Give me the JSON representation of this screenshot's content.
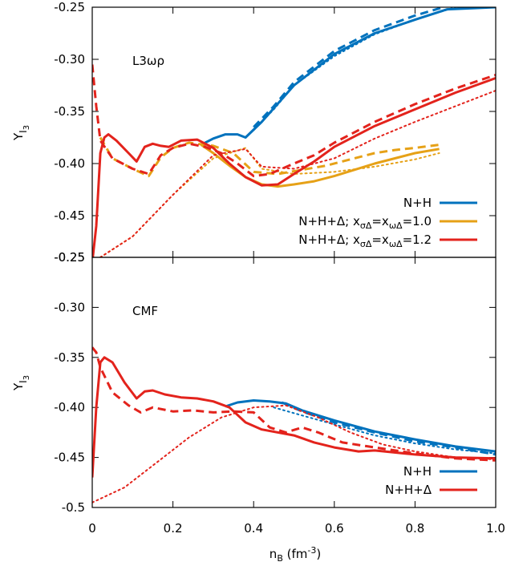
{
  "chart_data": [
    {
      "type": "line",
      "title": "L3ωρ",
      "ylabel_main": "Y",
      "ylabel_sub": "I",
      "ylabel_subsub": "3",
      "xlim": [
        0,
        1.0
      ],
      "ylim": [
        -0.45,
        -0.25
      ],
      "ylim_draw": [
        -0.495,
        -0.25
      ],
      "yticks": [
        -0.25,
        -0.3,
        -0.35,
        -0.4,
        -0.45
      ],
      "ytick_labels": [
        "-0.25",
        "-0.30",
        "-0.35",
        "-0.40",
        "-0.45"
      ],
      "legend_position": "bottom-right",
      "legend": [
        {
          "label": "N+H",
          "color": "#0072bd"
        },
        {
          "label_pre": "N+H+Δ; x",
          "sub1": "σΔ",
          "mid": "=x",
          "sub2": "ωΔ",
          "label_post": "=1.0",
          "color": "#e6a117"
        },
        {
          "label_pre": "N+H+Δ; x",
          "sub1": "σΔ",
          "mid": "=x",
          "sub2": "ωΔ",
          "label_post": "=1.2",
          "color": "#e3231c"
        }
      ],
      "series": [
        {
          "color": "#0072bd",
          "dash": "solid",
          "points": [
            [
              0.27,
              -0.382
            ],
            [
              0.3,
              -0.376
            ],
            [
              0.33,
              -0.372
            ],
            [
              0.36,
              -0.372
            ],
            [
              0.38,
              -0.375
            ],
            [
              0.42,
              -0.36
            ],
            [
              0.5,
              -0.325
            ],
            [
              0.6,
              -0.295
            ],
            [
              0.7,
              -0.275
            ],
            [
              0.8,
              -0.262
            ],
            [
              0.88,
              -0.252
            ],
            [
              1.0,
              -0.25
            ]
          ]
        },
        {
          "color": "#0072bd",
          "dash": "dashed",
          "points": [
            [
              0.4,
              -0.365
            ],
            [
              0.45,
              -0.345
            ],
            [
              0.5,
              -0.322
            ],
            [
              0.6,
              -0.292
            ],
            [
              0.7,
              -0.272
            ],
            [
              0.8,
              -0.258
            ],
            [
              0.87,
              -0.25
            ]
          ]
        },
        {
          "color": "#0072bd",
          "dash": "dotted",
          "points": [
            [
              0.4,
              -0.368
            ],
            [
              0.45,
              -0.348
            ],
            [
              0.5,
              -0.325
            ],
            [
              0.6,
              -0.297
            ],
            [
              0.7,
              -0.276
            ],
            [
              0.8,
              -0.262
            ],
            [
              0.9,
              -0.25
            ]
          ]
        },
        {
          "color": "#e6a117",
          "dash": "solid",
          "points": [
            [
              0.27,
              -0.382
            ],
            [
              0.3,
              -0.39
            ],
            [
              0.34,
              -0.402
            ],
            [
              0.38,
              -0.413
            ],
            [
              0.42,
              -0.42
            ],
            [
              0.46,
              -0.422
            ],
            [
              0.5,
              -0.42
            ],
            [
              0.55,
              -0.417
            ],
            [
              0.6,
              -0.412
            ],
            [
              0.65,
              -0.406
            ],
            [
              0.7,
              -0.4
            ],
            [
              0.75,
              -0.395
            ],
            [
              0.8,
              -0.39
            ],
            [
              0.86,
              -0.386
            ]
          ]
        },
        {
          "color": "#e6a117",
          "dash": "dashed",
          "points": [
            [
              0.02,
              -0.375
            ],
            [
              0.05,
              -0.395
            ],
            [
              0.1,
              -0.405
            ],
            [
              0.14,
              -0.412
            ],
            [
              0.17,
              -0.394
            ],
            [
              0.2,
              -0.385
            ],
            [
              0.24,
              -0.38
            ],
            [
              0.3,
              -0.383
            ],
            [
              0.35,
              -0.39
            ],
            [
              0.4,
              -0.408
            ],
            [
              0.46,
              -0.41
            ],
            [
              0.52,
              -0.406
            ],
            [
              0.58,
              -0.402
            ],
            [
              0.64,
              -0.396
            ],
            [
              0.7,
              -0.39
            ],
            [
              0.75,
              -0.387
            ],
            [
              0.8,
              -0.385
            ],
            [
              0.86,
              -0.382
            ]
          ]
        },
        {
          "color": "#e6a117",
          "dash": "dotted",
          "points": [
            [
              0.0,
              -0.495
            ],
            [
              0.1,
              -0.47
            ],
            [
              0.2,
              -0.43
            ],
            [
              0.3,
              -0.395
            ],
            [
              0.38,
              -0.385
            ],
            [
              0.42,
              -0.405
            ],
            [
              0.5,
              -0.41
            ],
            [
              0.6,
              -0.408
            ],
            [
              0.7,
              -0.403
            ],
            [
              0.8,
              -0.396
            ],
            [
              0.86,
              -0.39
            ]
          ]
        },
        {
          "color": "#e3231c",
          "dash": "solid",
          "points": [
            [
              0.0,
              -0.495
            ],
            [
              0.01,
              -0.46
            ],
            [
              0.02,
              -0.39
            ],
            [
              0.03,
              -0.375
            ],
            [
              0.04,
              -0.372
            ],
            [
              0.06,
              -0.378
            ],
            [
              0.09,
              -0.39
            ],
            [
              0.11,
              -0.398
            ],
            [
              0.13,
              -0.384
            ],
            [
              0.15,
              -0.381
            ],
            [
              0.17,
              -0.383
            ],
            [
              0.19,
              -0.384
            ],
            [
              0.22,
              -0.378
            ],
            [
              0.26,
              -0.377
            ],
            [
              0.3,
              -0.385
            ],
            [
              0.34,
              -0.4
            ],
            [
              0.38,
              -0.413
            ],
            [
              0.42,
              -0.421
            ],
            [
              0.46,
              -0.42
            ],
            [
              0.5,
              -0.41
            ],
            [
              0.55,
              -0.398
            ],
            [
              0.6,
              -0.384
            ],
            [
              0.7,
              -0.364
            ],
            [
              0.8,
              -0.348
            ],
            [
              0.9,
              -0.332
            ],
            [
              1.0,
              -0.318
            ]
          ]
        },
        {
          "color": "#e3231c",
          "dash": "dashed",
          "points": [
            [
              0.0,
              -0.305
            ],
            [
              0.01,
              -0.345
            ],
            [
              0.02,
              -0.378
            ],
            [
              0.05,
              -0.395
            ],
            [
              0.1,
              -0.405
            ],
            [
              0.14,
              -0.41
            ],
            [
              0.17,
              -0.392
            ],
            [
              0.2,
              -0.385
            ],
            [
              0.24,
              -0.381
            ],
            [
              0.28,
              -0.384
            ],
            [
              0.32,
              -0.39
            ],
            [
              0.36,
              -0.4
            ],
            [
              0.4,
              -0.412
            ],
            [
              0.44,
              -0.41
            ],
            [
              0.5,
              -0.4
            ],
            [
              0.55,
              -0.392
            ],
            [
              0.6,
              -0.38
            ],
            [
              0.7,
              -0.36
            ],
            [
              0.8,
              -0.343
            ],
            [
              0.9,
              -0.328
            ],
            [
              1.0,
              -0.315
            ]
          ]
        },
        {
          "color": "#e3231c",
          "dash": "dotted",
          "points": [
            [
              0.0,
              -0.495
            ],
            [
              0.1,
              -0.47
            ],
            [
              0.2,
              -0.43
            ],
            [
              0.3,
              -0.392
            ],
            [
              0.38,
              -0.386
            ],
            [
              0.42,
              -0.403
            ],
            [
              0.5,
              -0.405
            ],
            [
              0.6,
              -0.395
            ],
            [
              0.7,
              -0.376
            ],
            [
              0.8,
              -0.36
            ],
            [
              0.9,
              -0.345
            ],
            [
              1.0,
              -0.33
            ]
          ]
        }
      ]
    },
    {
      "type": "line",
      "title": "CMF",
      "ylabel_main": "Y",
      "ylabel_sub": "I",
      "ylabel_subsub": "3",
      "xlim": [
        0,
        1.0
      ],
      "ylim": [
        -0.5,
        -0.25
      ],
      "yticks": [
        -0.25,
        -0.3,
        -0.35,
        -0.4,
        -0.45,
        -0.5
      ],
      "ytick_labels": [
        "-0.25",
        "-0.30",
        "-0.35",
        "-0.40",
        "-0.45",
        "-0.5"
      ],
      "xticks": [
        0,
        0.2,
        0.4,
        0.6,
        0.8,
        1.0
      ],
      "xtick_labels": [
        "0",
        "0.2",
        "0.4",
        "0.6",
        "0.8",
        "1.0"
      ],
      "xlabel_main": "n",
      "xlabel_sub": "B",
      "xlabel_unit": " (fm",
      "xlabel_sup": "-3",
      "xlabel_end": ")",
      "legend_position": "bottom-right",
      "legend": [
        {
          "label": "N+H",
          "color": "#0072bd"
        },
        {
          "label": "N+H+Δ",
          "color": "#e3231c"
        }
      ],
      "series": [
        {
          "color": "#0072bd",
          "dash": "solid",
          "points": [
            [
              0.33,
              -0.399
            ],
            [
              0.36,
              -0.395
            ],
            [
              0.4,
              -0.393
            ],
            [
              0.44,
              -0.394
            ],
            [
              0.48,
              -0.396
            ],
            [
              0.52,
              -0.403
            ],
            [
              0.6,
              -0.413
            ],
            [
              0.7,
              -0.424
            ],
            [
              0.8,
              -0.432
            ],
            [
              0.9,
              -0.439
            ],
            [
              1.0,
              -0.444
            ]
          ]
        },
        {
          "color": "#0072bd",
          "dash": "dashed",
          "points": [
            [
              0.47,
              -0.395
            ],
            [
              0.52,
              -0.404
            ],
            [
              0.6,
              -0.415
            ],
            [
              0.7,
              -0.425
            ],
            [
              0.8,
              -0.434
            ],
            [
              0.9,
              -0.44
            ],
            [
              1.0,
              -0.447
            ]
          ]
        },
        {
          "color": "#0072bd",
          "dash": "dotted",
          "points": [
            [
              0.45,
              -0.4
            ],
            [
              0.52,
              -0.408
            ],
            [
              0.6,
              -0.417
            ],
            [
              0.7,
              -0.428
            ],
            [
              0.8,
              -0.436
            ],
            [
              0.9,
              -0.442
            ],
            [
              1.0,
              -0.446
            ]
          ]
        },
        {
          "color": "#e3231c",
          "dash": "solid",
          "points": [
            [
              0.0,
              -0.47
            ],
            [
              0.01,
              -0.4
            ],
            [
              0.02,
              -0.355
            ],
            [
              0.03,
              -0.35
            ],
            [
              0.05,
              -0.355
            ],
            [
              0.08,
              -0.375
            ],
            [
              0.11,
              -0.391
            ],
            [
              0.13,
              -0.384
            ],
            [
              0.15,
              -0.383
            ],
            [
              0.18,
              -0.387
            ],
            [
              0.22,
              -0.39
            ],
            [
              0.26,
              -0.391
            ],
            [
              0.3,
              -0.394
            ],
            [
              0.34,
              -0.4
            ],
            [
              0.38,
              -0.415
            ],
            [
              0.42,
              -0.422
            ],
            [
              0.5,
              -0.428
            ],
            [
              0.55,
              -0.435
            ],
            [
              0.6,
              -0.44
            ],
            [
              0.66,
              -0.444
            ],
            [
              0.7,
              -0.443
            ],
            [
              0.8,
              -0.447
            ],
            [
              0.9,
              -0.45
            ],
            [
              1.0,
              -0.451
            ]
          ]
        },
        {
          "color": "#e3231c",
          "dash": "dashed",
          "points": [
            [
              0.0,
              -0.34
            ],
            [
              0.01,
              -0.345
            ],
            [
              0.02,
              -0.36
            ],
            [
              0.05,
              -0.385
            ],
            [
              0.09,
              -0.398
            ],
            [
              0.12,
              -0.405
            ],
            [
              0.15,
              -0.4
            ],
            [
              0.2,
              -0.404
            ],
            [
              0.25,
              -0.403
            ],
            [
              0.3,
              -0.405
            ],
            [
              0.35,
              -0.404
            ],
            [
              0.4,
              -0.405
            ],
            [
              0.44,
              -0.42
            ],
            [
              0.48,
              -0.425
            ],
            [
              0.52,
              -0.42
            ],
            [
              0.56,
              -0.425
            ],
            [
              0.62,
              -0.435
            ],
            [
              0.7,
              -0.44
            ],
            [
              0.8,
              -0.446
            ],
            [
              0.9,
              -0.451
            ],
            [
              1.0,
              -0.453
            ]
          ]
        },
        {
          "color": "#e3231c",
          "dash": "dotted",
          "points": [
            [
              0.0,
              -0.495
            ],
            [
              0.08,
              -0.48
            ],
            [
              0.16,
              -0.455
            ],
            [
              0.24,
              -0.43
            ],
            [
              0.32,
              -0.41
            ],
            [
              0.4,
              -0.4
            ],
            [
              0.48,
              -0.398
            ],
            [
              0.56,
              -0.41
            ],
            [
              0.64,
              -0.425
            ],
            [
              0.72,
              -0.437
            ],
            [
              0.8,
              -0.444
            ],
            [
              0.9,
              -0.45
            ],
            [
              1.0,
              -0.452
            ]
          ]
        }
      ]
    }
  ]
}
